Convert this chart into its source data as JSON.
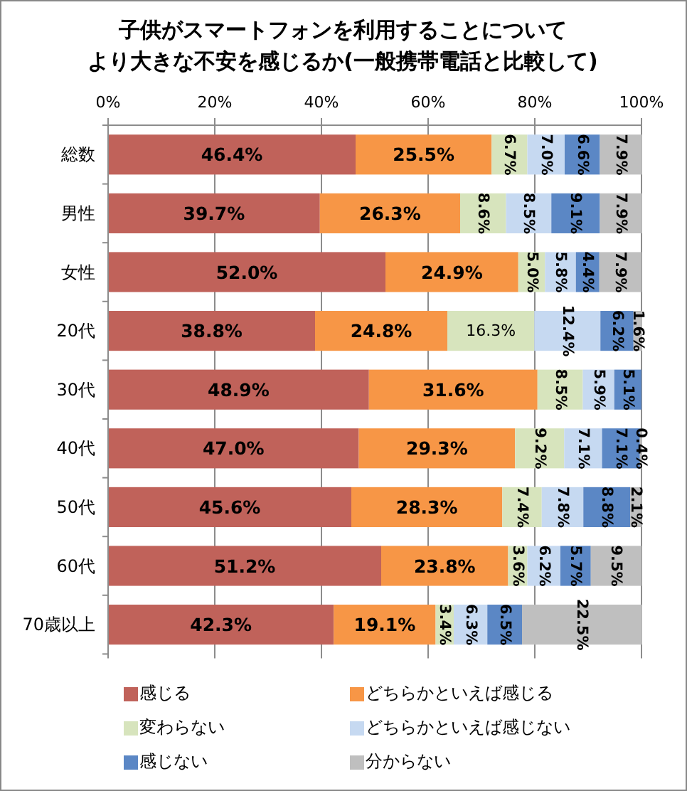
{
  "chart_data": {
    "type": "bar",
    "orientation": "horizontal",
    "stacked": true,
    "title": "子供がスマートフォンを利用することについてより大きな不安を感じるか(一般携帯電話と比較して)",
    "categories": [
      "総数",
      "男性",
      "女性",
      "20代",
      "30代",
      "40代",
      "50代",
      "60代",
      "70歳以上"
    ],
    "series": [
      {
        "name": "感じる",
        "color": "#c0625a",
        "values": [
          46.4,
          39.7,
          52.0,
          38.8,
          48.9,
          47.0,
          45.6,
          51.2,
          42.3
        ],
        "value_labels": [
          "46.4%",
          "39.7%",
          "52.0%",
          "38.8%",
          "48.9%",
          "47.0%",
          "45.6%",
          "51.2%",
          "42.3%"
        ]
      },
      {
        "name": "どちらかといえば感じる",
        "color": "#f79646",
        "values": [
          25.5,
          26.3,
          24.9,
          24.8,
          31.6,
          29.3,
          28.3,
          23.8,
          19.1
        ],
        "value_labels": [
          "25.5%",
          "26.3%",
          "24.9%",
          "24.8%",
          "31.6%",
          "29.3%",
          "28.3%",
          "23.8%",
          "19.1%"
        ]
      },
      {
        "name": "変わらない",
        "color": "#d7e4bd",
        "values": [
          6.7,
          8.6,
          5.0,
          16.3,
          8.5,
          9.2,
          7.4,
          3.6,
          3.4
        ],
        "value_labels": [
          "6.7%",
          "8.6%",
          "5.0%",
          "16.3%",
          "8.5%",
          "9.2%",
          "7.4%",
          "3.6%",
          "3.4%"
        ]
      },
      {
        "name": "どちらかといえば感じない",
        "color": "#c6d9f1",
        "values": [
          7.0,
          8.5,
          5.8,
          12.4,
          5.9,
          7.1,
          7.8,
          6.2,
          6.3
        ],
        "value_labels": [
          "7.0%",
          "8.5%",
          "5.8%",
          "12.4%",
          "5.9%",
          "7.1%",
          "7.8%",
          "6.2%",
          "6.3%"
        ]
      },
      {
        "name": "感じない",
        "color": "#5b87c5",
        "values": [
          6.6,
          9.1,
          4.4,
          6.2,
          5.1,
          7.1,
          8.8,
          5.7,
          6.5
        ],
        "value_labels": [
          "6.6%",
          "9.1%",
          "4.4%",
          "6.2%",
          "5.1%",
          "7.1%",
          "8.8%",
          "5.7%",
          "6.5%"
        ]
      },
      {
        "name": "分からない",
        "color": "#bfbfbf",
        "values": [
          7.9,
          7.9,
          7.9,
          1.6,
          null,
          0.4,
          2.1,
          9.5,
          22.5
        ],
        "value_labels": [
          "7.9%",
          "7.9%",
          "7.9%",
          "1.6%",
          null,
          "0.4%",
          "2.1%",
          "9.5%",
          "22.5%"
        ]
      }
    ],
    "xlim": [
      0,
      100
    ],
    "xticks": [
      {
        "value": 0,
        "label": "0%"
      },
      {
        "value": 20,
        "label": "20%"
      },
      {
        "value": 40,
        "label": "40%"
      },
      {
        "value": 60,
        "label": "60%"
      },
      {
        "value": 80,
        "label": "80%"
      },
      {
        "value": 100,
        "label": "100%"
      }
    ],
    "grid": "x",
    "legend": "bottom"
  }
}
